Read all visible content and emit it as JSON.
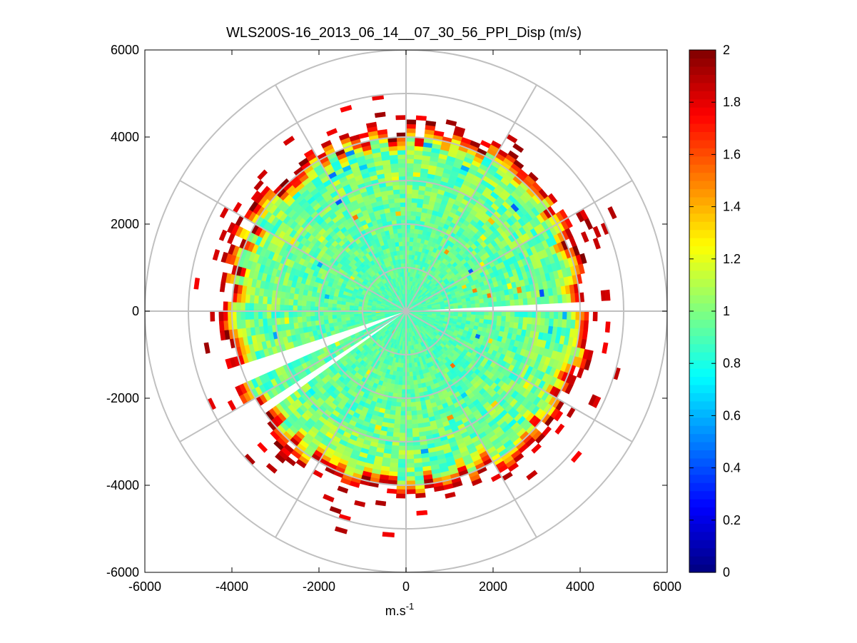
{
  "chart_data": {
    "type": "heatmap",
    "subtype": "polar-ppi",
    "title": "WLS200S-16_2013_06_14__07_30_56_PPI_Disp (m/s)",
    "xlabel": "m.s",
    "xlabel_superscript": "-1",
    "ylabel": "",
    "xlim": [
      -6000,
      6000
    ],
    "ylim": [
      -6000,
      6000
    ],
    "xticks": [
      -6000,
      -4000,
      -2000,
      0,
      2000,
      4000,
      6000
    ],
    "yticks": [
      6000,
      4000,
      2000,
      0,
      -2000,
      -4000,
      -6000
    ],
    "xtick_labels": [
      "-6000",
      "-4000",
      "-2000",
      "0",
      "2000",
      "4000",
      "6000"
    ],
    "ytick_labels": [
      "6000",
      "4000",
      "2000",
      "0",
      "-2000",
      "-4000",
      "-6000"
    ],
    "polar_grid": {
      "ring_radii": [
        1000,
        2000,
        3000,
        4000,
        5000,
        6000
      ],
      "spoke_angles_deg": [
        0,
        30,
        60,
        90,
        120,
        150,
        180,
        210,
        240,
        270,
        300,
        330
      ]
    },
    "data_extent": {
      "inner_range_m": 0,
      "outer_range_m": 4200,
      "sparse_outer_range_m": 5300,
      "gap_sectors_deg": [
        [
          88,
          91
        ],
        [
          233,
          236
        ],
        [
          247,
          251
        ]
      ]
    },
    "colorbar": {
      "range": [
        0,
        2
      ],
      "ticks": [
        0,
        0.2,
        0.4,
        0.6,
        0.8,
        1,
        1.2,
        1.4,
        1.6,
        1.8,
        2
      ],
      "tick_labels": [
        "0",
        "0.2",
        "0.4",
        "0.6",
        "0.8",
        "1",
        "1.2",
        "1.4",
        "1.6",
        "1.8",
        "2"
      ],
      "colormap": "jet"
    },
    "value_profile": {
      "near_center": 0.9,
      "mid_range": 1.0,
      "edge": 1.95
    }
  }
}
